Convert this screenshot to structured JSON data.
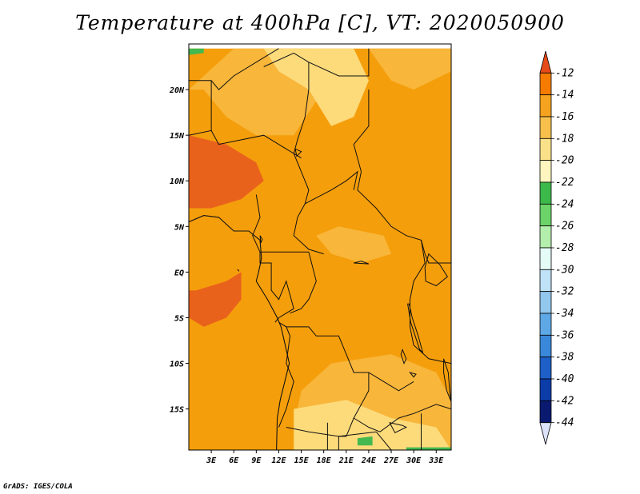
{
  "title": "Temperature at 400hPa [C], VT: 2020050900",
  "credit": "GrADS: IGES/COLA",
  "chart_data": {
    "type": "heatmap",
    "variable": "Temperature at 400hPa",
    "units": "C",
    "valid_time": "2020050900",
    "xlim": [
      0,
      35
    ],
    "ylim": [
      -19.5,
      25
    ],
    "x_ticks": [
      {
        "value": 3,
        "label": "3E"
      },
      {
        "value": 6,
        "label": "6E"
      },
      {
        "value": 9,
        "label": "9E"
      },
      {
        "value": 12,
        "label": "12E"
      },
      {
        "value": 15,
        "label": "15E"
      },
      {
        "value": 18,
        "label": "18E"
      },
      {
        "value": 21,
        "label": "21E"
      },
      {
        "value": 24,
        "label": "24E"
      },
      {
        "value": 27,
        "label": "27E"
      },
      {
        "value": 30,
        "label": "30E"
      },
      {
        "value": 33,
        "label": "33E"
      }
    ],
    "y_ticks": [
      {
        "value": 20,
        "label": "20N"
      },
      {
        "value": 15,
        "label": "15N"
      },
      {
        "value": 10,
        "label": "10N"
      },
      {
        "value": 5,
        "label": "5N"
      },
      {
        "value": 0,
        "label": "EQ"
      },
      {
        "value": -5,
        "label": "5S"
      },
      {
        "value": -10,
        "label": "10S"
      },
      {
        "value": -15,
        "label": "15S"
      }
    ],
    "colorbar": {
      "labels": [
        "-12",
        "-14",
        "-16",
        "-18",
        "-20",
        "-22",
        "-24",
        "-26",
        "-28",
        "-30",
        "-32",
        "-34",
        "-36",
        "-38",
        "-40",
        "-42",
        "-44"
      ],
      "colors": [
        "#e64a19",
        "#f57c00",
        "#f5a21e",
        "#f7c04d",
        "#fbe08a",
        "#fff6bf",
        "#3cb94a",
        "#6cd369",
        "#b4eeac",
        "#e4fbf6",
        "#bfe2f7",
        "#92c7ee",
        "#5ea8e6",
        "#3a88d9",
        "#1f5fc8",
        "#0c3ca8",
        "#0a1a70",
        "#dce2f8"
      ]
    },
    "regions": [
      {
        "value": -15,
        "color": "#f59e0b",
        "polygon": [
          [
            0,
            24.5
          ],
          [
            35,
            24.5
          ],
          [
            35,
            -19.5
          ],
          [
            0,
            -19.5
          ]
        ]
      },
      {
        "value": -17,
        "color": "#f8b63a",
        "polygon": [
          [
            6,
            24.5
          ],
          [
            16,
            24.5
          ],
          [
            18,
            20
          ],
          [
            14,
            15
          ],
          [
            9,
            15
          ],
          [
            5,
            17
          ],
          [
            2,
            20
          ],
          [
            0,
            20
          ]
        ]
      },
      {
        "value": -19,
        "color": "#fddb7b",
        "polygon": [
          [
            10,
            24.5
          ],
          [
            22,
            24.5
          ],
          [
            24,
            21
          ],
          [
            22,
            17
          ],
          [
            19,
            16
          ],
          [
            16,
            20
          ],
          [
            12,
            22
          ]
        ]
      },
      {
        "value": -17,
        "color": "#f8b63a",
        "polygon": [
          [
            24,
            24.5
          ],
          [
            35,
            24.5
          ],
          [
            35,
            22
          ],
          [
            30,
            20
          ],
          [
            27,
            21
          ]
        ]
      },
      {
        "value": -17,
        "color": "#f8b63a",
        "polygon": [
          [
            17,
            4
          ],
          [
            20,
            5
          ],
          [
            26,
            4
          ],
          [
            27,
            2
          ],
          [
            23,
            1
          ],
          [
            19,
            2
          ]
        ]
      },
      {
        "value": -17,
        "color": "#f8b63a",
        "polygon": [
          [
            19,
            -10
          ],
          [
            27,
            -9
          ],
          [
            33,
            -11
          ],
          [
            35,
            -14
          ],
          [
            35,
            -19.5
          ],
          [
            18,
            -19.5
          ],
          [
            14,
            -17
          ],
          [
            15,
            -13
          ]
        ]
      },
      {
        "value": -19,
        "color": "#fddb7b",
        "polygon": [
          [
            14,
            -15
          ],
          [
            21,
            -14
          ],
          [
            27,
            -16
          ],
          [
            33,
            -17
          ],
          [
            35,
            -19.5
          ],
          [
            14,
            -19.5
          ]
        ]
      },
      {
        "value": -13,
        "color": "#e9621c",
        "polygon": [
          [
            0,
            15
          ],
          [
            5,
            14
          ],
          [
            9,
            12
          ],
          [
            10,
            10
          ],
          [
            7,
            8
          ],
          [
            3,
            7
          ],
          [
            0,
            7
          ]
        ]
      },
      {
        "value": -13,
        "color": "#e9621c",
        "polygon": [
          [
            1,
            -2
          ],
          [
            5,
            -1
          ],
          [
            7,
            0
          ],
          [
            7,
            -3
          ],
          [
            5,
            -5
          ],
          [
            2,
            -6
          ],
          [
            0,
            -5
          ],
          [
            0,
            -2
          ]
        ]
      },
      {
        "value": -23,
        "color": "#43b94f",
        "polygon": [
          [
            0,
            24.5
          ],
          [
            2,
            24.5
          ],
          [
            2,
            24
          ],
          [
            0,
            23.8
          ]
        ]
      },
      {
        "value": -23,
        "color": "#43b94f",
        "polygon": [
          [
            22.5,
            -18.2
          ],
          [
            24.5,
            -18
          ],
          [
            24.5,
            -19
          ],
          [
            22.5,
            -19
          ]
        ]
      },
      {
        "value": -23,
        "color": "#43b94f",
        "polygon": [
          [
            29,
            -19.5
          ],
          [
            35,
            -19.5
          ],
          [
            35,
            -19.2
          ],
          [
            29,
            -19.2
          ]
        ]
      }
    ],
    "borders": [
      [
        [
          0,
          21
        ],
        [
          3,
          21
        ],
        [
          4,
          20
        ],
        [
          6,
          21.5
        ],
        [
          10,
          23.5
        ],
        [
          12,
          24.5
        ]
      ],
      [
        [
          3,
          21
        ],
        [
          3,
          15.5
        ],
        [
          0,
          15
        ]
      ],
      [
        [
          3,
          15.5
        ],
        [
          4,
          14
        ],
        [
          10,
          15
        ],
        [
          13,
          13.5
        ],
        [
          15,
          12.5
        ]
      ],
      [
        [
          10,
          22.5
        ],
        [
          14,
          24
        ],
        [
          16,
          23
        ],
        [
          16,
          20
        ],
        [
          15.5,
          17
        ],
        [
          14.5,
          14.5
        ],
        [
          14,
          13
        ],
        [
          15,
          11
        ],
        [
          16,
          9
        ],
        [
          15.5,
          7.5
        ],
        [
          14.5,
          6
        ],
        [
          14,
          4
        ],
        [
          16,
          2.5
        ],
        [
          18,
          2
        ]
      ],
      [
        [
          16,
          23
        ],
        [
          20,
          21.5
        ],
        [
          24,
          21.5
        ],
        [
          24,
          24.5
        ]
      ],
      [
        [
          24,
          20
        ],
        [
          24,
          16
        ],
        [
          22,
          14
        ],
        [
          23,
          11
        ],
        [
          22.5,
          9
        ],
        [
          25,
          7
        ],
        [
          27,
          5
        ],
        [
          29,
          4
        ],
        [
          31,
          3.5
        ],
        [
          31.5,
          2
        ],
        [
          32,
          1
        ],
        [
          35,
          1
        ]
      ],
      [
        [
          15.5,
          7.5
        ],
        [
          19,
          9
        ],
        [
          21,
          10
        ],
        [
          22.5,
          11
        ],
        [
          22,
          9
        ]
      ],
      [
        [
          9,
          8.5
        ],
        [
          9.5,
          6
        ],
        [
          8.5,
          4
        ],
        [
          9.5,
          2.2
        ],
        [
          11,
          2.2
        ],
        [
          14,
          2.2
        ],
        [
          16,
          2.2
        ]
      ],
      [
        [
          9.5,
          2.2
        ],
        [
          9.5,
          1
        ],
        [
          11,
          1
        ],
        [
          11,
          -2
        ],
        [
          12,
          -3
        ],
        [
          13,
          -1
        ],
        [
          14,
          -4
        ],
        [
          12,
          -5
        ],
        [
          11.5,
          -5.5
        ]
      ],
      [
        [
          16,
          2.2
        ],
        [
          17,
          -1
        ],
        [
          16,
          -3
        ],
        [
          15,
          -4
        ],
        [
          13.5,
          -4.5
        ]
      ],
      [
        [
          31,
          3.5
        ],
        [
          31.5,
          1
        ],
        [
          30,
          -1
        ],
        [
          29.5,
          -3
        ],
        [
          29.5,
          -6
        ],
        [
          30,
          -8
        ],
        [
          32,
          -9.5
        ],
        [
          35,
          -10
        ]
      ],
      [
        [
          12,
          -5.5
        ],
        [
          13,
          -6
        ],
        [
          13.5,
          -7
        ],
        [
          13,
          -10
        ],
        [
          14,
          -12
        ],
        [
          13,
          -15
        ],
        [
          12,
          -17
        ]
      ],
      [
        [
          13,
          -6
        ],
        [
          16,
          -6
        ],
        [
          17,
          -7
        ],
        [
          20,
          -7
        ],
        [
          21,
          -9
        ],
        [
          22,
          -11
        ],
        [
          24,
          -11
        ],
        [
          26,
          -12
        ],
        [
          28,
          -13
        ],
        [
          30,
          -12
        ]
      ],
      [
        [
          24,
          -11
        ],
        [
          24,
          -13
        ],
        [
          22,
          -16
        ],
        [
          24,
          -17
        ],
        [
          25.5,
          -17.5
        ],
        [
          28,
          -16
        ],
        [
          30,
          -15.5
        ],
        [
          33,
          -14.5
        ],
        [
          35,
          -15
        ]
      ],
      [
        [
          22,
          -16
        ],
        [
          21,
          -18
        ],
        [
          20,
          -18
        ],
        [
          20,
          -19.5
        ]
      ],
      [
        [
          13,
          -17
        ],
        [
          16,
          -17.5
        ],
        [
          20,
          -18
        ],
        [
          25,
          -17.5
        ]
      ],
      [
        [
          25,
          -17.5
        ],
        [
          27,
          -19.5
        ]
      ],
      [
        [
          31,
          -15.5
        ],
        [
          31,
          -19.5
        ]
      ],
      [
        [
          18.5,
          -16.5
        ],
        [
          18.5,
          -19.5
        ]
      ]
    ],
    "coastline": [
      [
        [
          0,
          5.5
        ],
        [
          2,
          6.2
        ],
        [
          4,
          6
        ],
        [
          6,
          4.5
        ],
        [
          8,
          4.5
        ],
        [
          9.5,
          3.5
        ],
        [
          9.7,
          1.5
        ],
        [
          9.3,
          0
        ],
        [
          9.0,
          -1
        ],
        [
          10.5,
          -3
        ],
        [
          11.8,
          -5
        ],
        [
          12.3,
          -6
        ],
        [
          13,
          -8.5
        ],
        [
          13.4,
          -10
        ],
        [
          12.8,
          -12
        ],
        [
          12.2,
          -14
        ],
        [
          11.8,
          -16
        ],
        [
          11.7,
          -19.5
        ]
      ]
    ],
    "lakes": [
      [
        [
          32,
          2
        ],
        [
          33.5,
          0.8
        ],
        [
          34.5,
          -0.5
        ],
        [
          33,
          -1.5
        ],
        [
          31.6,
          -1
        ],
        [
          31.5,
          0.5
        ]
      ],
      [
        [
          29.2,
          -3.5
        ],
        [
          29.6,
          -5.5
        ],
        [
          30.2,
          -7
        ],
        [
          30.8,
          -8.5
        ],
        [
          31.2,
          -8.8
        ],
        [
          30.6,
          -7
        ],
        [
          29.8,
          -5
        ],
        [
          29.4,
          -3.5
        ]
      ],
      [
        [
          34,
          -9.5
        ],
        [
          34.6,
          -11
        ],
        [
          34.8,
          -13
        ],
        [
          35,
          -14.2
        ],
        [
          34.4,
          -13
        ],
        [
          34,
          -11
        ]
      ],
      [
        [
          28.5,
          -8.5
        ],
        [
          29,
          -9.5
        ],
        [
          28.7,
          -10
        ],
        [
          28.3,
          -9
        ]
      ],
      [
        [
          29.5,
          -11
        ],
        [
          30,
          -11.5
        ],
        [
          30.3,
          -11.2
        ]
      ],
      [
        [
          26.8,
          -16.5
        ],
        [
          28.5,
          -16.8
        ],
        [
          29,
          -17
        ],
        [
          27.5,
          -17.6
        ]
      ],
      [
        [
          22,
          1
        ],
        [
          23,
          1.2
        ],
        [
          24,
          0.9
        ]
      ],
      [
        [
          9.5,
          4
        ],
        [
          9.8,
          3.6
        ],
        [
          9.6,
          3.2
        ]
      ],
      [
        [
          6.5,
          0.3
        ],
        [
          6.7,
          0.1
        ]
      ],
      [
        [
          14.2,
          13.5
        ],
        [
          15,
          13.2
        ],
        [
          14.4,
          12.7
        ]
      ]
    ]
  }
}
